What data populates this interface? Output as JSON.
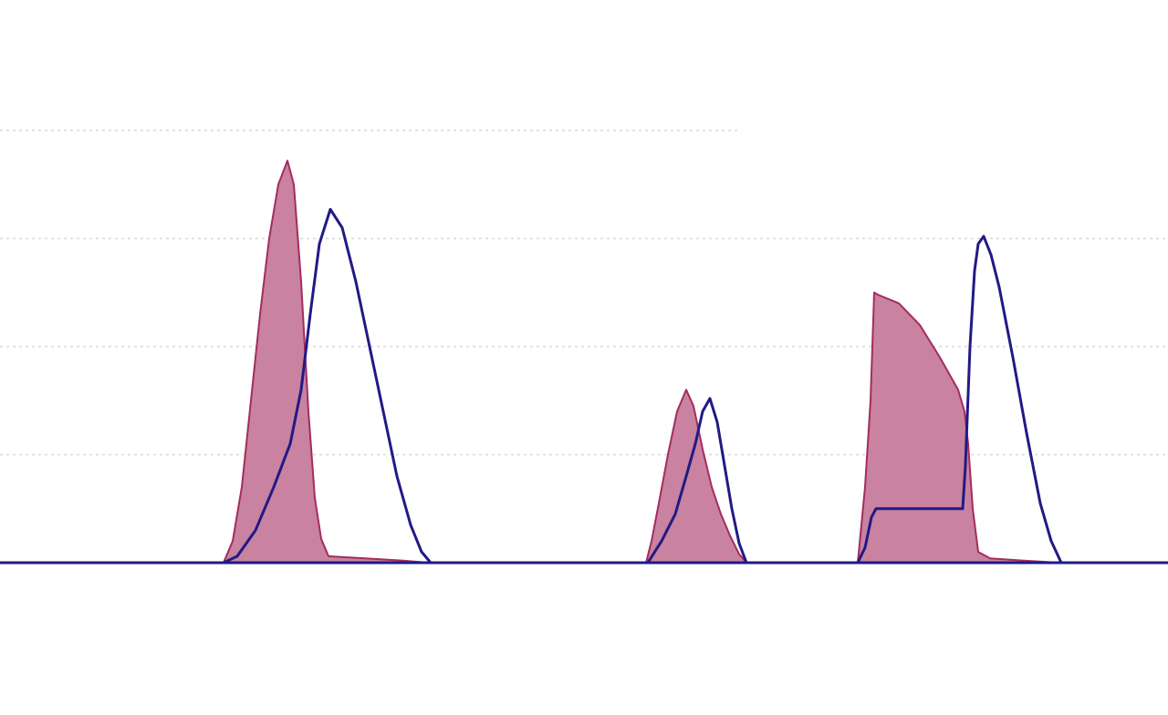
{
  "chart_data": {
    "type": "area",
    "x_range": [
      0,
      1280
    ],
    "ylim": [
      0,
      4
    ],
    "gridlines": [
      1,
      2,
      3,
      4
    ],
    "grid": true,
    "legend": "none",
    "colors": {
      "fill": "#c9829f",
      "fill_stroke": "#a32c60",
      "line": "#211a85",
      "grid": "#d8d8d8",
      "background": "#ffffff"
    },
    "series": [
      {
        "style": "filled-area",
        "points": [
          [
            0,
            0
          ],
          [
            245,
            0
          ],
          [
            255,
            0.2
          ],
          [
            265,
            0.7
          ],
          [
            275,
            1.5
          ],
          [
            285,
            2.3
          ],
          [
            295,
            3.0
          ],
          [
            305,
            3.5
          ],
          [
            315,
            3.72
          ],
          [
            322,
            3.5
          ],
          [
            330,
            2.6
          ],
          [
            338,
            1.4
          ],
          [
            345,
            0.6
          ],
          [
            352,
            0.22
          ],
          [
            360,
            0.06
          ],
          [
            400,
            0.04
          ],
          [
            440,
            0.02
          ],
          [
            470,
            0
          ],
          [
            708,
            0
          ],
          [
            714,
            0.2
          ],
          [
            722,
            0.55
          ],
          [
            732,
            1.0
          ],
          [
            742,
            1.4
          ],
          [
            752,
            1.6
          ],
          [
            760,
            1.45
          ],
          [
            770,
            1.05
          ],
          [
            780,
            0.7
          ],
          [
            790,
            0.45
          ],
          [
            800,
            0.25
          ],
          [
            810,
            0.08
          ],
          [
            818,
            0
          ],
          [
            940,
            0
          ],
          [
            948,
            0.7
          ],
          [
            954,
            1.5
          ],
          [
            958,
            2.5
          ],
          [
            962,
            2.48
          ],
          [
            985,
            2.4
          ],
          [
            1008,
            2.2
          ],
          [
            1030,
            1.9
          ],
          [
            1050,
            1.6
          ],
          [
            1057,
            1.4
          ],
          [
            1061,
            1.1
          ],
          [
            1066,
            0.5
          ],
          [
            1072,
            0.1
          ],
          [
            1085,
            0.04
          ],
          [
            1120,
            0.02
          ],
          [
            1160,
            0
          ],
          [
            1280,
            0
          ]
        ]
      },
      {
        "style": "line",
        "points": [
          [
            0,
            0
          ],
          [
            245,
            0
          ],
          [
            260,
            0.06
          ],
          [
            280,
            0.3
          ],
          [
            300,
            0.7
          ],
          [
            318,
            1.1
          ],
          [
            330,
            1.6
          ],
          [
            340,
            2.3
          ],
          [
            350,
            2.95
          ],
          [
            362,
            3.27
          ],
          [
            375,
            3.1
          ],
          [
            390,
            2.6
          ],
          [
            405,
            2.0
          ],
          [
            420,
            1.4
          ],
          [
            435,
            0.8
          ],
          [
            450,
            0.35
          ],
          [
            462,
            0.1
          ],
          [
            472,
            0
          ],
          [
            710,
            0
          ],
          [
            725,
            0.2
          ],
          [
            740,
            0.45
          ],
          [
            752,
            0.8
          ],
          [
            762,
            1.1
          ],
          [
            770,
            1.4
          ],
          [
            778,
            1.52
          ],
          [
            786,
            1.3
          ],
          [
            794,
            0.9
          ],
          [
            802,
            0.5
          ],
          [
            810,
            0.18
          ],
          [
            818,
            0
          ],
          [
            940,
            0
          ],
          [
            948,
            0.14
          ],
          [
            955,
            0.42
          ],
          [
            960,
            0.5
          ],
          [
            1000,
            0.5
          ],
          [
            1040,
            0.5
          ],
          [
            1055,
            0.5
          ],
          [
            1058,
            0.9
          ],
          [
            1063,
            2.0
          ],
          [
            1068,
            2.7
          ],
          [
            1072,
            2.95
          ],
          [
            1078,
            3.02
          ],
          [
            1086,
            2.85
          ],
          [
            1095,
            2.55
          ],
          [
            1110,
            1.9
          ],
          [
            1125,
            1.2
          ],
          [
            1140,
            0.55
          ],
          [
            1152,
            0.2
          ],
          [
            1163,
            0
          ],
          [
            1280,
            0
          ]
        ]
      }
    ]
  }
}
